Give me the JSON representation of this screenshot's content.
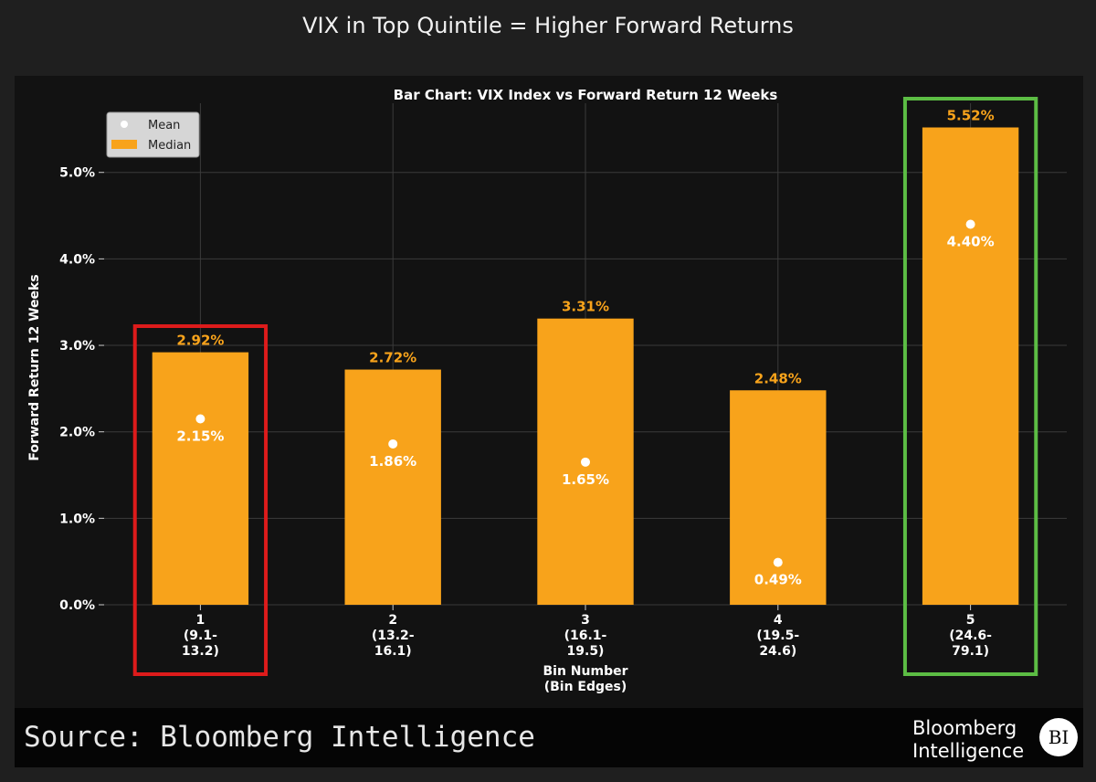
{
  "page": {
    "title": "VIX in Top Quintile = Higher Forward Returns",
    "source": "Source: Bloomberg Intelligence",
    "brand_line1": "Bloomberg",
    "brand_line2": "Intelligence",
    "brand_badge": "BI"
  },
  "chart_data": {
    "type": "bar",
    "title": "Bar Chart: VIX Index vs Forward Return 12 Weeks",
    "xlabel": "Bin Number\n(Bin Edges)",
    "ylabel": "Forward Return 12 Weeks",
    "ylim": [
      0,
      5.8
    ],
    "yticks": [
      0,
      1,
      2,
      3,
      4,
      5
    ],
    "ytick_labels": [
      "0.0%",
      "1.0%",
      "2.0%",
      "3.0%",
      "4.0%",
      "5.0%"
    ],
    "grid": true,
    "legend_position": "top-left",
    "categories": [
      [
        "1",
        "(9.1-",
        "13.2)"
      ],
      [
        "2",
        "(13.2-",
        "16.1)"
      ],
      [
        "3",
        "(16.1-",
        "19.5)"
      ],
      [
        "4",
        "(19.5-",
        "24.6)"
      ],
      [
        "5",
        "(24.6-",
        "79.1)"
      ]
    ],
    "series": [
      {
        "name": "Median",
        "kind": "bar",
        "color": "#f8a31b",
        "values": [
          2.92,
          2.72,
          3.31,
          2.48,
          5.52
        ],
        "labels": [
          "2.92%",
          "2.72%",
          "3.31%",
          "2.48%",
          "5.52%"
        ]
      },
      {
        "name": "Mean",
        "kind": "point",
        "color": "#ffffff",
        "values": [
          2.15,
          1.86,
          1.65,
          0.49,
          4.4
        ],
        "labels": [
          "2.15%",
          "1.86%",
          "1.65%",
          "0.49%",
          "4.40%"
        ]
      }
    ],
    "highlights": [
      {
        "bin": 1,
        "color": "#dd1b1b"
      },
      {
        "bin": 5,
        "color": "#5cbd44"
      }
    ]
  }
}
